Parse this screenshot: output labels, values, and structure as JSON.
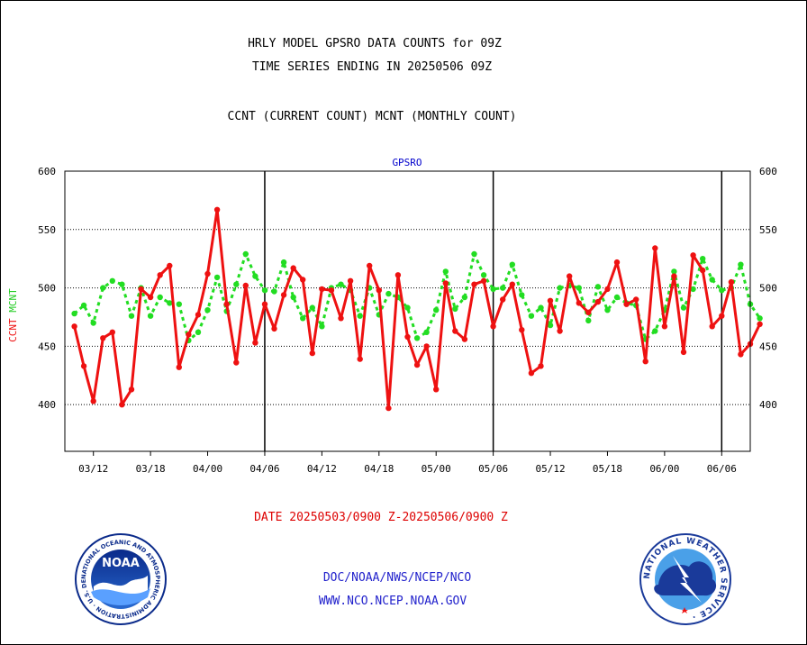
{
  "header": {
    "line1": "HRLY MODEL GPSRO DATA COUNTS for 09Z",
    "line2": "TIME SERIES ENDING IN 20250506 09Z",
    "line3": "CCNT (CURRENT COUNT) MCNT (MONTHLY COUNT)"
  },
  "footer": {
    "date_range": "DATE 20250503/0900 Z-20250506/0900 Z",
    "org": "DOC/NOAA/NWS/NCEP/NCO",
    "url": "WWW.NCO.NCEP.NOAA.GOV"
  },
  "logos": {
    "noaa_text": "NOAA",
    "noaa_ring": "NATIONAL OCEANIC AND ATMOSPHERIC ADMINISTRATION · U.S. DEPARTMENT OF COMMERCE ·",
    "nws_ring": "NATIONAL WEATHER SERVICE ·"
  },
  "colors": {
    "ccnt": "#ee1111",
    "mcnt": "#22dd22",
    "title": "#000000",
    "panel_title": "#0000cc",
    "footer_red": "#dd0000",
    "footer_blue": "#2222cc"
  },
  "chart_data": {
    "type": "line",
    "title": "GPSRO",
    "ylabel_left": [
      "CCNT",
      "MCNT"
    ],
    "ylim": [
      360,
      600
    ],
    "yticks": [
      400,
      450,
      500,
      550,
      600
    ],
    "xticks": [
      "03/12",
      "03/18",
      "04/00",
      "04/06",
      "04/12",
      "04/18",
      "05/00",
      "05/06",
      "05/12",
      "05/18",
      "06/00",
      "06/06"
    ],
    "xtick_pos": [
      2,
      8,
      14,
      20,
      26,
      32,
      38,
      44,
      50,
      56,
      62,
      68
    ],
    "xlim": [
      -1,
      71
    ],
    "day_boundaries": [
      20,
      44,
      68
    ],
    "grid": true,
    "series": [
      {
        "name": "CCNT",
        "values": [
          467,
          433,
          403,
          457,
          462,
          400,
          413,
          499,
          492,
          511,
          519,
          432,
          460,
          477,
          512,
          567,
          486,
          436,
          502,
          453,
          486,
          465,
          494,
          517,
          507,
          444,
          499,
          498,
          474,
          506,
          439,
          519,
          498,
          397,
          511,
          458,
          434,
          450,
          413,
          504,
          463,
          456,
          503,
          506,
          467,
          490,
          503,
          464,
          427,
          433,
          489,
          463,
          510,
          487,
          479,
          488,
          499,
          522,
          486,
          490,
          437,
          534,
          467,
          510,
          445,
          528,
          515,
          467,
          476,
          505,
          443,
          452,
          469
        ]
      },
      {
        "name": "MCNT",
        "values": [
          478,
          485,
          470,
          500,
          506,
          503,
          476,
          500,
          476,
          492,
          487,
          486,
          455,
          462,
          481,
          509,
          480,
          503,
          529,
          510,
          498,
          497,
          522,
          492,
          474,
          483,
          467,
          500,
          503,
          498,
          476,
          500,
          477,
          495,
          492,
          483,
          457,
          462,
          481,
          514,
          482,
          492,
          529,
          511,
          499,
          500,
          520,
          494,
          476,
          483,
          468,
          500,
          502,
          500,
          472,
          501,
          481,
          492,
          487,
          485,
          456,
          463,
          481,
          514,
          483,
          499,
          525,
          507,
          498,
          500,
          520,
          486,
          474
        ]
      }
    ]
  }
}
